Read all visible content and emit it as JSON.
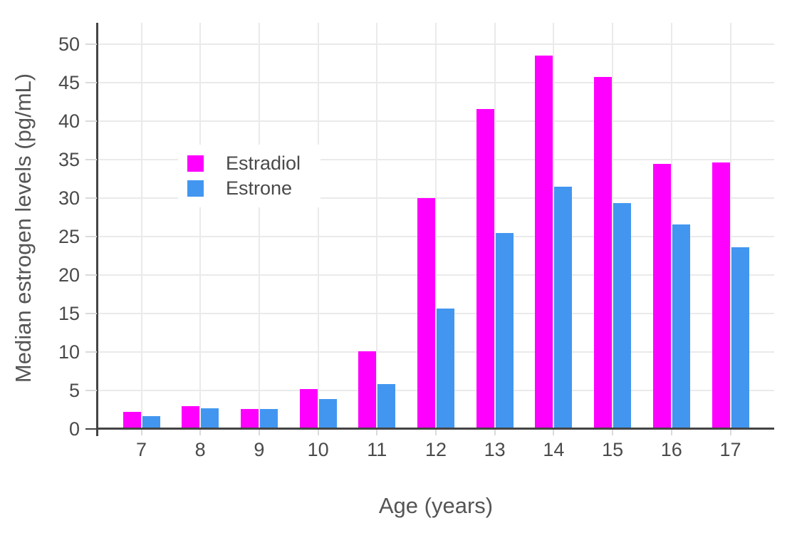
{
  "chart_data": {
    "type": "bar",
    "categories": [
      7,
      8,
      9,
      10,
      11,
      12,
      13,
      14,
      15,
      16,
      17
    ],
    "series": [
      {
        "name": "Estradiol",
        "color": "#FF00FF",
        "values": [
          2.2,
          3.0,
          2.6,
          5.2,
          10.1,
          30.0,
          41.6,
          48.5,
          45.8,
          34.5,
          34.6
        ]
      },
      {
        "name": "Estrone",
        "color": "#4296F0",
        "values": [
          1.7,
          2.7,
          2.6,
          3.9,
          5.8,
          15.7,
          25.5,
          31.5,
          29.4,
          26.6,
          23.6
        ]
      }
    ],
    "title": "",
    "xlabel": "Age (years)",
    "ylabel": "Median estrogen levels (pg/mL)",
    "ylim": [
      0,
      52.8
    ],
    "y_ticks": [
      0,
      5,
      10,
      15,
      20,
      25,
      30,
      35,
      40,
      45,
      50
    ],
    "grid": true,
    "legend_position": "inside-top-left"
  },
  "style": {
    "background": "#FFFFFF",
    "axis_color": "#444444",
    "grid_color": "#EAEAEA",
    "tick_mark_color": "#DADADA",
    "tick_label_color": "#4A4A4A",
    "axis_title_color": "#555555"
  }
}
